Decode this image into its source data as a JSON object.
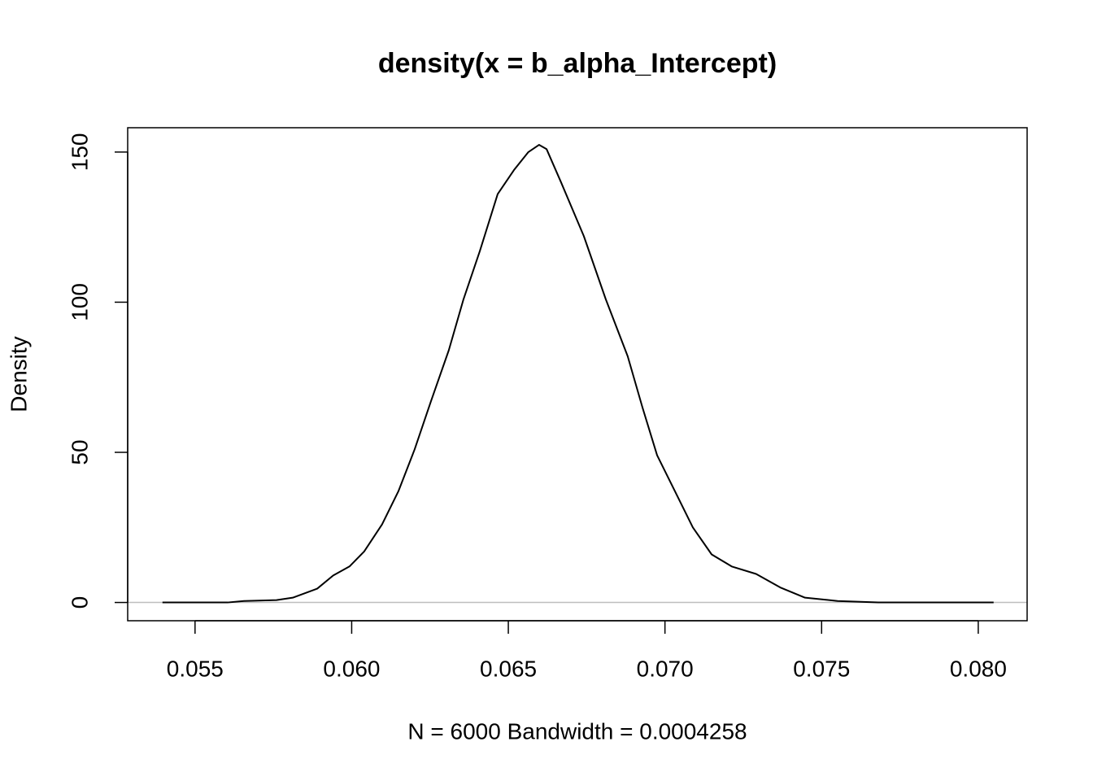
{
  "chart_data": {
    "type": "line",
    "title": "density(x = b_alpha_Intercept)",
    "x_label": "N = 6000   Bandwidth = 0.0004258",
    "y_label": "Density",
    "x": [
      0.05396,
      0.05604,
      0.05656,
      0.0576,
      0.05812,
      0.0589,
      0.05941,
      0.05993,
      0.0604,
      0.06097,
      0.06149,
      0.06201,
      0.06253,
      0.0631,
      0.06357,
      0.06409,
      0.06466,
      0.06518,
      0.06564,
      0.06598,
      0.06622,
      0.06668,
      0.06741,
      0.06811,
      0.06881,
      0.06928,
      0.06975,
      0.07032,
      0.07089,
      0.07149,
      0.07213,
      0.07291,
      0.0737,
      0.07447,
      0.07551,
      0.07681,
      0.08049
    ],
    "values": [
      0,
      0,
      0.5,
      0.8,
      1.6,
      4.6,
      9,
      12,
      17,
      26,
      37,
      51,
      67,
      84,
      101,
      117,
      136,
      144,
      150,
      152.4,
      151,
      140,
      122,
      101,
      82,
      65,
      49,
      37,
      25,
      16,
      12,
      9.5,
      4.9,
      1.6,
      0.5,
      0,
      0
    ],
    "color": "#000000",
    "xlim": [
      0.05285,
      0.08156
    ],
    "ylim": [
      -6.08,
      158.1
    ],
    "xticks": [
      0.055,
      {
        "value": 0.06,
        "label": "0.060"
      },
      0.065,
      {
        "value": 0.07,
        "label": "0.070"
      },
      0.075,
      {
        "value": 0.08,
        "label": "0.080"
      }
    ],
    "yticks": [
      0,
      50,
      100,
      150
    ],
    "zero_line": true,
    "zero_line_color": "#bebebe"
  }
}
